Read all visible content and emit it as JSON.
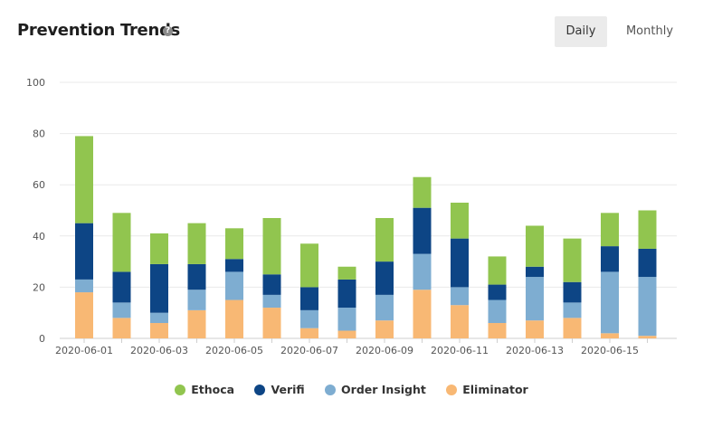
{
  "header": {
    "title": "Prevention Trends",
    "help_icon": "question-circle-icon",
    "help_glyph": "?"
  },
  "toggles": {
    "daily_label": "Daily",
    "monthly_label": "Monthly",
    "selected": "Daily"
  },
  "colors": {
    "Ethoca": "#91c54f",
    "Verifi": "#0d4585",
    "Order Insight": "#7eadd1",
    "Eliminator": "#f8b874"
  },
  "chart_data": {
    "type": "bar",
    "stacked": true,
    "title": "Prevention Trends",
    "xlabel": "",
    "ylabel": "",
    "ylim": [
      0,
      100
    ],
    "yticks": [
      0,
      20,
      40,
      60,
      80,
      100
    ],
    "grid": true,
    "legend_position": "bottom",
    "categories": [
      "2020-06-01",
      "2020-06-02",
      "2020-06-03",
      "2020-06-04",
      "2020-06-05",
      "2020-06-06",
      "2020-06-07",
      "2020-06-08",
      "2020-06-09",
      "2020-06-10",
      "2020-06-11",
      "2020-06-12",
      "2020-06-13",
      "2020-06-14",
      "2020-06-15",
      "2020-06-16"
    ],
    "xtick_labels": [
      "2020-06-01",
      "2020-06-03",
      "2020-06-05",
      "2020-06-07",
      "2020-06-09",
      "2020-06-11",
      "2020-06-13",
      "2020-06-15"
    ],
    "series": [
      {
        "name": "Eliminator",
        "values": [
          18,
          8,
          6,
          11,
          15,
          12,
          4,
          3,
          7,
          19,
          13,
          6,
          7,
          8,
          2,
          1
        ]
      },
      {
        "name": "Order Insight",
        "values": [
          5,
          6,
          4,
          8,
          11,
          5,
          7,
          9,
          10,
          14,
          7,
          9,
          17,
          6,
          24,
          23
        ]
      },
      {
        "name": "Verifi",
        "values": [
          22,
          12,
          19,
          10,
          5,
          8,
          9,
          11,
          13,
          18,
          19,
          6,
          4,
          8,
          10,
          11
        ]
      },
      {
        "name": "Ethoca",
        "values": [
          34,
          23,
          12,
          16,
          12,
          22,
          17,
          5,
          17,
          12,
          14,
          11,
          16,
          17,
          13,
          15
        ]
      }
    ],
    "legend_order": [
      "Ethoca",
      "Verifi",
      "Order Insight",
      "Eliminator"
    ]
  }
}
